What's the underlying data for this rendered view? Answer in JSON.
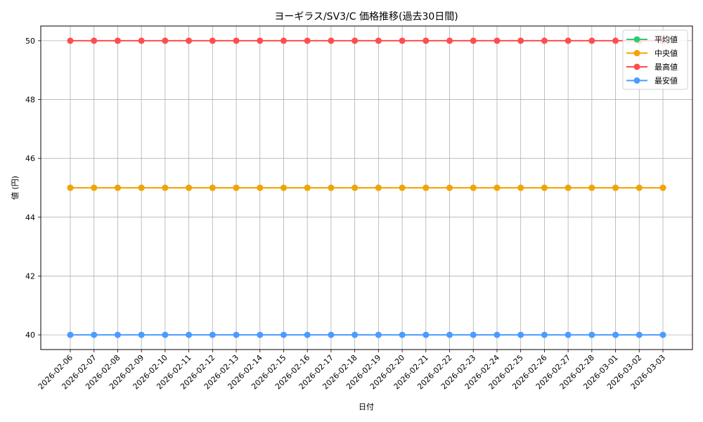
{
  "chart_data": {
    "type": "line",
    "title": "ヨーギラス/SV3/C 価格推移(過去30日間)",
    "xlabel": "日付",
    "ylabel": "値 (円)",
    "ylim": [
      39.5,
      50.5
    ],
    "yticks": [
      40,
      42,
      44,
      46,
      48,
      50
    ],
    "grid": true,
    "legend_position": "upper right",
    "x": [
      "2026-02-06",
      "2026-02-07",
      "2026-02-08",
      "2026-02-09",
      "2026-02-10",
      "2026-02-11",
      "2026-02-12",
      "2026-02-13",
      "2026-02-14",
      "2026-02-15",
      "2026-02-16",
      "2026-02-17",
      "2026-02-18",
      "2026-02-19",
      "2026-02-20",
      "2026-02-21",
      "2026-02-22",
      "2026-02-23",
      "2026-02-24",
      "2026-02-25",
      "2026-02-26",
      "2026-02-27",
      "2026-02-28",
      "2026-03-01",
      "2026-03-02",
      "2026-03-03"
    ],
    "series": [
      {
        "name": "平均値",
        "color": "#2ecc71",
        "values": [
          45,
          45,
          45,
          45,
          45,
          45,
          45,
          45,
          45,
          45,
          45,
          45,
          45,
          45,
          45,
          45,
          45,
          45,
          45,
          45,
          45,
          45,
          45,
          45,
          45,
          45
        ]
      },
      {
        "name": "中央値",
        "color": "#f5a300",
        "values": [
          45,
          45,
          45,
          45,
          45,
          45,
          45,
          45,
          45,
          45,
          45,
          45,
          45,
          45,
          45,
          45,
          45,
          45,
          45,
          45,
          45,
          45,
          45,
          45,
          45,
          45
        ]
      },
      {
        "name": "最高値",
        "color": "#ff4d4f",
        "values": [
          50,
          50,
          50,
          50,
          50,
          50,
          50,
          50,
          50,
          50,
          50,
          50,
          50,
          50,
          50,
          50,
          50,
          50,
          50,
          50,
          50,
          50,
          50,
          50,
          50,
          50
        ]
      },
      {
        "name": "最安値",
        "color": "#4a9cff",
        "values": [
          40,
          40,
          40,
          40,
          40,
          40,
          40,
          40,
          40,
          40,
          40,
          40,
          40,
          40,
          40,
          40,
          40,
          40,
          40,
          40,
          40,
          40,
          40,
          40,
          40,
          40
        ]
      }
    ]
  }
}
